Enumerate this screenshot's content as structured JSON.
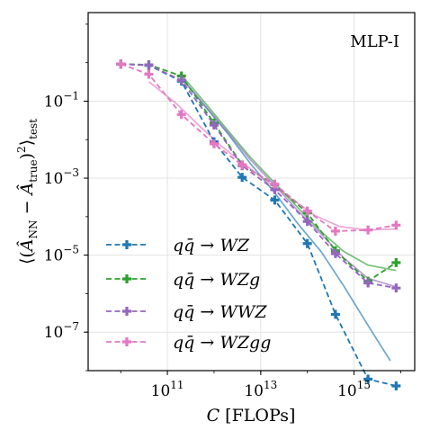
{
  "chart_data": {
    "type": "line",
    "title": "MLP-I",
    "xlabel": "C [FLOPs]",
    "ylabel": "⟨(Â_NN − Â_true)²⟩_test",
    "x_scale": "log",
    "y_scale": "log",
    "xlim": [
      2000000000.0,
      2e+16
    ],
    "ylim": [
      1e-08,
      20
    ],
    "x_ticks": [
      {
        "value": 100000000000.0,
        "base": "10",
        "exp": "11"
      },
      {
        "value": 10000000000000.0,
        "base": "10",
        "exp": "13"
      },
      {
        "value": 1000000000000000.0,
        "base": "10",
        "exp": "15"
      }
    ],
    "y_ticks": [
      {
        "value": 1e-07,
        "base": "10",
        "exp": "−7"
      },
      {
        "value": 1e-05,
        "base": "10",
        "exp": "−5"
      },
      {
        "value": 0.001,
        "base": "10",
        "exp": "−3"
      },
      {
        "value": 0.1,
        "base": "10",
        "exp": "−1"
      }
    ],
    "grid": true,
    "legend_position": "bottom-left",
    "series": [
      {
        "name": "qq̄ → WZ",
        "color": "#1f77b4",
        "x": [
          10000000000.0,
          40000000000.0,
          200000000000.0,
          1000000000000.0,
          4000000000000.0,
          20000000000000.0,
          100000000000000.0,
          400000000000000.0,
          2000000000000000.0,
          8000000000000000.0
        ],
        "y": [
          0.92,
          0.85,
          0.33,
          0.0088,
          0.00105,
          0.00027,
          2e-05,
          2.9e-07,
          6e-09,
          4e-09
        ],
        "fit_x": [
          200000000000.0,
          600000000000.0,
          2000000000000.0,
          6000000000000.0,
          20000000000000.0,
          60000000000000.0,
          200000000000000.0,
          600000000000000.0,
          2000000000000000.0,
          6000000000000000.0
        ],
        "fit_y": [
          0.4,
          0.08,
          0.014,
          0.0024,
          0.00042,
          7e-05,
          1.2e-05,
          1.6e-06,
          1.5e-07,
          1.8e-08
        ]
      },
      {
        "name": "qq̄ → WZg",
        "color": "#2ca02c",
        "x": [
          10000000000.0,
          40000000000.0,
          200000000000.0,
          1000000000000.0,
          4000000000000.0,
          20000000000000.0,
          100000000000000.0,
          400000000000000.0,
          2000000000000000.0,
          8000000000000000.0
        ],
        "y": [
          0.92,
          0.88,
          0.45,
          0.027,
          0.0022,
          0.00068,
          0.000125,
          1.3e-05,
          2.1e-06,
          6.4e-06
        ],
        "fit_x": [
          200000000000.0,
          600000000000.0,
          2000000000000.0,
          6000000000000.0,
          20000000000000.0,
          60000000000000.0,
          200000000000000.0,
          600000000000000.0,
          2000000000000000.0,
          8000000000000000.0
        ],
        "fit_y": [
          0.48,
          0.1,
          0.017,
          0.0035,
          0.00075,
          0.00018,
          4e-05,
          1.25e-05,
          5.5e-06,
          4e-06
        ]
      },
      {
        "name": "qq̄ → WWZ",
        "color": "#9467bd",
        "x": [
          10000000000.0,
          40000000000.0,
          200000000000.0,
          1000000000000.0,
          4000000000000.0,
          20000000000000.0,
          100000000000000.0,
          400000000000000.0,
          2000000000000000.0,
          8000000000000000.0
        ],
        "y": [
          0.92,
          0.87,
          0.35,
          0.024,
          0.0021,
          0.0005,
          7.5e-05,
          1.1e-05,
          1.9e-06,
          1.4e-06
        ],
        "fit_x": [
          200000000000.0,
          600000000000.0,
          2000000000000.0,
          6000000000000.0,
          20000000000000.0,
          60000000000000.0,
          200000000000000.0,
          600000000000000.0,
          2000000000000000.0,
          8000000000000000.0
        ],
        "fit_y": [
          0.4,
          0.085,
          0.015,
          0.003,
          0.00065,
          0.00015,
          3.5e-05,
          8.5e-06,
          2.5e-06,
          1.5e-06
        ]
      },
      {
        "name": "qq̄ → WZgg",
        "color": "#e377c2",
        "x": [
          10000000000.0,
          40000000000.0,
          200000000000.0,
          1000000000000.0,
          4000000000000.0,
          20000000000000.0,
          100000000000000.0,
          400000000000000.0,
          2000000000000000.0,
          8000000000000000.0
        ],
        "y": [
          0.92,
          0.5,
          0.045,
          0.0078,
          0.0022,
          0.0007,
          0.00014,
          4.2e-05,
          4.5e-05,
          6e-05
        ],
        "fit_x": [
          40000000000.0,
          150000000000.0,
          500000000000.0,
          1500000000000.0,
          5000000000000.0,
          15000000000000.0,
          50000000000000.0,
          150000000000000.0,
          500000000000000.0,
          2000000000000000.0,
          8000000000000000.0
        ],
        "fit_y": [
          0.32,
          0.09,
          0.022,
          0.0065,
          0.0021,
          0.00075,
          0.00027,
          0.000105,
          5.5e-05,
          4.5e-05,
          4.8e-05
        ]
      }
    ]
  }
}
